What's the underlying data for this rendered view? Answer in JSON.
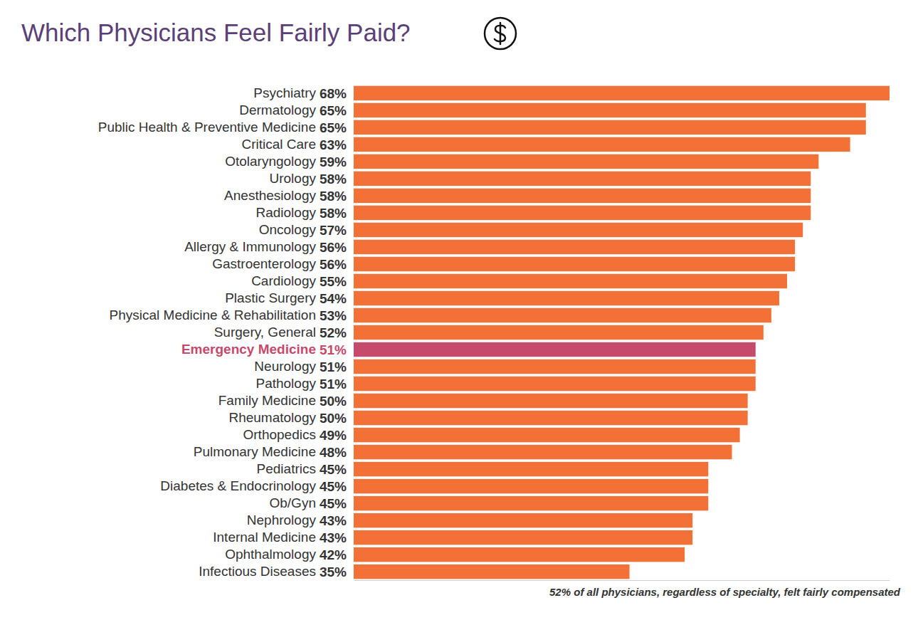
{
  "chart_data": {
    "type": "bar",
    "title": "Which Physicians Feel Fairly Paid?",
    "annotation": "52% of all physicians, regardless of specialty, felt fairly compensated",
    "orientation": "horizontal",
    "categories": [
      "Psychiatry",
      "Dermatology",
      "Public Health & Preventive Medicine",
      "Critical Care",
      "Otolaryngology",
      "Urology",
      "Anesthesiology",
      "Radiology",
      "Oncology",
      "Allergy & Immunology",
      "Gastroenterology",
      "Cardiology",
      "Plastic Surgery",
      "Physical Medicine & Rehabilitation",
      "Surgery, General",
      "Emergency Medicine",
      "Neurology",
      "Pathology",
      "Family Medicine",
      "Rheumatology",
      "Orthopedics",
      "Pulmonary Medicine",
      "Pediatrics",
      "Diabetes & Endocrinology",
      "Ob/Gyn",
      "Nephrology",
      "Internal Medicine",
      "Ophthalmology",
      "Infectious Diseases"
    ],
    "values": [
      68,
      65,
      65,
      63,
      59,
      58,
      58,
      58,
      57,
      56,
      56,
      55,
      54,
      53,
      52,
      51,
      51,
      51,
      50,
      50,
      49,
      48,
      45,
      45,
      45,
      43,
      43,
      42,
      35
    ],
    "value_labels": [
      "68%",
      "65%",
      "65%",
      "63%",
      "59%",
      "58%",
      "58%",
      "58%",
      "57%",
      "56%",
      "56%",
      "55%",
      "54%",
      "53%",
      "52%",
      "51%",
      "51%",
      "51%",
      "50%",
      "50%",
      "49%",
      "48%",
      "45%",
      "45%",
      "45%",
      "43%",
      "43%",
      "42%",
      "35%"
    ],
    "colors": [
      "#f37036",
      "#f37036",
      "#f37036",
      "#f37036",
      "#f37036",
      "#f37036",
      "#f37036",
      "#f37036",
      "#f37036",
      "#f37036",
      "#f37036",
      "#f37036",
      "#f37036",
      "#f37036",
      "#f37036",
      "#c64a6b",
      "#f37036",
      "#f37036",
      "#f37036",
      "#f37036",
      "#f37036",
      "#f37036",
      "#f37036",
      "#f37036",
      "#f37036",
      "#f37036",
      "#f37036",
      "#f37036",
      "#f37036"
    ],
    "xlim": [
      0,
      68
    ],
    "data_labels": true,
    "tick_labels": "y"
  }
}
